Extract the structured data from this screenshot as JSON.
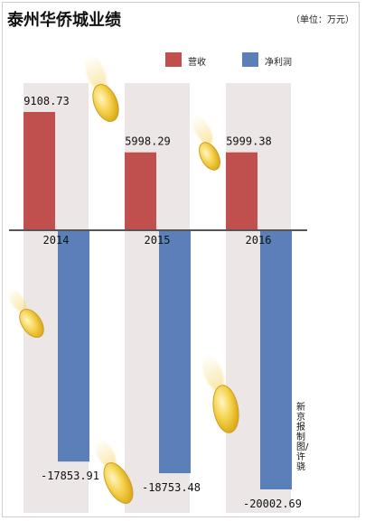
{
  "title": "泰州华侨城业绩",
  "unit": "（单位：万元）",
  "legend": [
    {
      "label": "营收",
      "color": "#c0504d"
    },
    {
      "label": "净利润",
      "color": "#5b7fb8"
    }
  ],
  "credit": "新京报制图/许骁",
  "chart_data": {
    "type": "bar",
    "categories": [
      "2014",
      "2015",
      "2016"
    ],
    "series": [
      {
        "name": "营收",
        "values": [
          9108.73,
          5998.29,
          5999.38
        ],
        "labels": [
          "9108.73",
          "5998.29",
          "5999.38"
        ],
        "color": "#c0504d"
      },
      {
        "name": "净利润",
        "values": [
          -17853.91,
          -18753.48,
          -20002.69
        ],
        "labels": [
          "-17853.91",
          "-18753.48",
          "-20002.69"
        ],
        "color": "#5b7fb8"
      }
    ],
    "title": "泰州华侨城业绩",
    "ylim": [
      -20500,
      12500
    ],
    "grid": false,
    "legend_position": "top-right"
  }
}
